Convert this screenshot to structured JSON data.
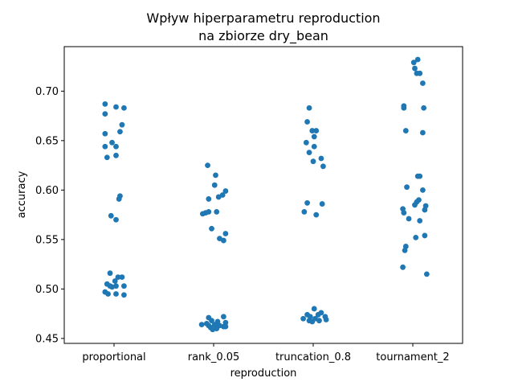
{
  "chart_data": {
    "type": "scatter",
    "title_lines": [
      "Wpływ hiperparametru reproduction",
      "na zbiorze dry_bean"
    ],
    "xlabel": "reproduction",
    "ylabel": "accuracy",
    "categories": [
      "proportional",
      "rank_0.05",
      "truncation_0.8",
      "tournament_2"
    ],
    "ylim": [
      0.445,
      0.745
    ],
    "yticks": [
      0.45,
      0.5,
      0.55,
      0.6,
      0.65,
      0.7
    ],
    "ytick_labels": [
      "0.45",
      "0.50",
      "0.55",
      "0.60",
      "0.65",
      "0.70"
    ],
    "grid": false,
    "legend": "none",
    "point_color": "#1f77b4",
    "series": [
      {
        "category": "proportional",
        "points": [
          {
            "x": -0.09,
            "y": 0.687
          },
          {
            "x": 0.02,
            "y": 0.684
          },
          {
            "x": 0.1,
            "y": 0.683
          },
          {
            "x": -0.09,
            "y": 0.677
          },
          {
            "x": 0.08,
            "y": 0.666
          },
          {
            "x": 0.06,
            "y": 0.659
          },
          {
            "x": -0.09,
            "y": 0.657
          },
          {
            "x": -0.02,
            "y": 0.648
          },
          {
            "x": 0.02,
            "y": 0.644
          },
          {
            "x": -0.09,
            "y": 0.644
          },
          {
            "x": 0.02,
            "y": 0.635
          },
          {
            "x": -0.07,
            "y": 0.633
          },
          {
            "x": 0.06,
            "y": 0.594
          },
          {
            "x": 0.05,
            "y": 0.591
          },
          {
            "x": -0.03,
            "y": 0.574
          },
          {
            "x": 0.02,
            "y": 0.57
          },
          {
            "x": -0.04,
            "y": 0.516
          },
          {
            "x": 0.04,
            "y": 0.512
          },
          {
            "x": 0.08,
            "y": 0.512
          },
          {
            "x": 0.01,
            "y": 0.508
          },
          {
            "x": -0.07,
            "y": 0.505
          },
          {
            "x": -0.04,
            "y": 0.503
          },
          {
            "x": 0.02,
            "y": 0.503
          },
          {
            "x": 0.1,
            "y": 0.503
          },
          {
            "x": -0.02,
            "y": 0.502
          },
          {
            "x": -0.09,
            "y": 0.497
          },
          {
            "x": -0.06,
            "y": 0.495
          },
          {
            "x": 0.02,
            "y": 0.495
          },
          {
            "x": 0.1,
            "y": 0.494
          }
        ]
      },
      {
        "category": "rank_0.05",
        "points": [
          {
            "x": -0.06,
            "y": 0.625
          },
          {
            "x": 0.02,
            "y": 0.615
          },
          {
            "x": 0.01,
            "y": 0.605
          },
          {
            "x": 0.12,
            "y": 0.599
          },
          {
            "x": 0.09,
            "y": 0.595
          },
          {
            "x": 0.05,
            "y": 0.593
          },
          {
            "x": -0.05,
            "y": 0.591
          },
          {
            "x": -0.05,
            "y": 0.578
          },
          {
            "x": 0.03,
            "y": 0.578
          },
          {
            "x": -0.08,
            "y": 0.577
          },
          {
            "x": -0.11,
            "y": 0.576
          },
          {
            "x": -0.02,
            "y": 0.561
          },
          {
            "x": 0.12,
            "y": 0.556
          },
          {
            "x": 0.06,
            "y": 0.551
          },
          {
            "x": 0.1,
            "y": 0.549
          },
          {
            "x": -0.05,
            "y": 0.471
          },
          {
            "x": 0.1,
            "y": 0.472
          },
          {
            "x": -0.02,
            "y": 0.468
          },
          {
            "x": 0.04,
            "y": 0.467
          },
          {
            "x": 0.12,
            "y": 0.466
          },
          {
            "x": -0.12,
            "y": 0.464
          },
          {
            "x": -0.07,
            "y": 0.465
          },
          {
            "x": -0.05,
            "y": 0.463
          },
          {
            "x": 0.01,
            "y": 0.464
          },
          {
            "x": 0.06,
            "y": 0.463
          },
          {
            "x": 0.1,
            "y": 0.462
          },
          {
            "x": -0.03,
            "y": 0.461
          },
          {
            "x": 0.03,
            "y": 0.46
          },
          {
            "x": 0.12,
            "y": 0.462
          },
          {
            "x": -0.01,
            "y": 0.459
          }
        ]
      },
      {
        "category": "truncation_0.8",
        "points": [
          {
            "x": -0.04,
            "y": 0.683
          },
          {
            "x": -0.06,
            "y": 0.669
          },
          {
            "x": -0.01,
            "y": 0.66
          },
          {
            "x": 0.03,
            "y": 0.66
          },
          {
            "x": 0.01,
            "y": 0.654
          },
          {
            "x": -0.07,
            "y": 0.648
          },
          {
            "x": 0.01,
            "y": 0.644
          },
          {
            "x": -0.04,
            "y": 0.638
          },
          {
            "x": 0.08,
            "y": 0.632
          },
          {
            "x": 0.0,
            "y": 0.629
          },
          {
            "x": 0.1,
            "y": 0.624
          },
          {
            "x": -0.06,
            "y": 0.587
          },
          {
            "x": 0.09,
            "y": 0.586
          },
          {
            "x": -0.09,
            "y": 0.578
          },
          {
            "x": 0.03,
            "y": 0.575
          },
          {
            "x": 0.01,
            "y": 0.48
          },
          {
            "x": 0.08,
            "y": 0.476
          },
          {
            "x": -0.06,
            "y": 0.474
          },
          {
            "x": 0.05,
            "y": 0.474
          },
          {
            "x": -0.03,
            "y": 0.472
          },
          {
            "x": 0.12,
            "y": 0.472
          },
          {
            "x": -0.1,
            "y": 0.47
          },
          {
            "x": 0.02,
            "y": 0.47
          },
          {
            "x": 0.13,
            "y": 0.469
          },
          {
            "x": -0.04,
            "y": 0.468
          },
          {
            "x": 0.06,
            "y": 0.468
          },
          {
            "x": -0.01,
            "y": 0.467
          }
        ]
      },
      {
        "category": "tournament_2",
        "points": [
          {
            "x": 0.05,
            "y": 0.732
          },
          {
            "x": 0.01,
            "y": 0.729
          },
          {
            "x": 0.02,
            "y": 0.723
          },
          {
            "x": 0.04,
            "y": 0.718
          },
          {
            "x": 0.07,
            "y": 0.718
          },
          {
            "x": 0.1,
            "y": 0.708
          },
          {
            "x": -0.09,
            "y": 0.685
          },
          {
            "x": -0.09,
            "y": 0.683
          },
          {
            "x": 0.11,
            "y": 0.683
          },
          {
            "x": -0.07,
            "y": 0.66
          },
          {
            "x": 0.1,
            "y": 0.658
          },
          {
            "x": 0.05,
            "y": 0.614
          },
          {
            "x": 0.07,
            "y": 0.614
          },
          {
            "x": -0.06,
            "y": 0.603
          },
          {
            "x": 0.1,
            "y": 0.6
          },
          {
            "x": 0.06,
            "y": 0.59
          },
          {
            "x": 0.04,
            "y": 0.588
          },
          {
            "x": 0.02,
            "y": 0.585
          },
          {
            "x": 0.13,
            "y": 0.584
          },
          {
            "x": -0.1,
            "y": 0.581
          },
          {
            "x": 0.12,
            "y": 0.58
          },
          {
            "x": -0.09,
            "y": 0.577
          },
          {
            "x": -0.04,
            "y": 0.571
          },
          {
            "x": 0.07,
            "y": 0.569
          },
          {
            "x": 0.12,
            "y": 0.554
          },
          {
            "x": 0.03,
            "y": 0.552
          },
          {
            "x": -0.07,
            "y": 0.543
          },
          {
            "x": -0.08,
            "y": 0.539
          },
          {
            "x": -0.1,
            "y": 0.522
          },
          {
            "x": 0.14,
            "y": 0.515
          }
        ]
      }
    ]
  }
}
